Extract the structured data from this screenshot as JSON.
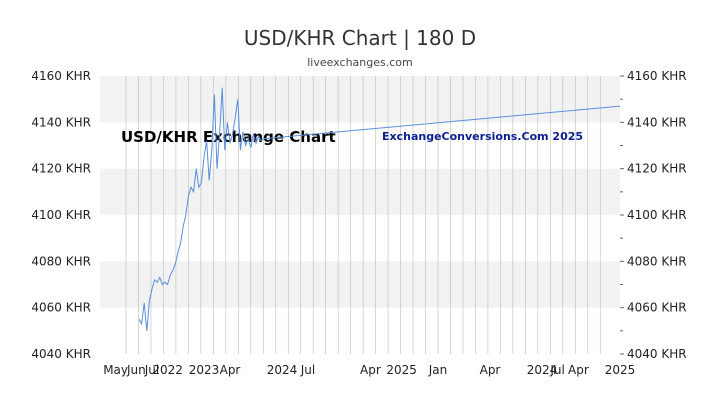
{
  "chart_data": {
    "type": "line",
    "title": "USD/KHR Chart | 180 D",
    "subtitle": "liveexchanges.com",
    "ylim": [
      4040,
      4160
    ],
    "y_ticks": [
      "4040 KHR",
      "4060 KHR",
      "4080 KHR",
      "4100 KHR",
      "4120 KHR",
      "4140 KHR",
      "4160 KHR"
    ],
    "y_tick_values": [
      4040,
      4060,
      4080,
      4100,
      4120,
      4140,
      4160
    ],
    "xlim": [
      0,
      100
    ],
    "x_tick_labels": [
      "May",
      "Jun",
      "Jul",
      "2022",
      "2023",
      "Apr",
      "2024",
      "Jul",
      "Apr",
      "2025",
      "Jan",
      "Apr",
      "2024",
      "Jul",
      "Apr",
      "2025"
    ],
    "x_tick_positions": [
      3,
      7,
      10,
      13,
      20,
      25,
      35,
      40,
      52,
      58,
      65,
      75,
      85,
      88,
      92,
      100
    ],
    "gridlines": true,
    "watermark_left": "USD/KHR Exchange Chart",
    "watermark_right": "ExchangeConversions.Com 2025",
    "line_color": "#5b8fdc",
    "series": [
      {
        "values_x": [
          7.5,
          8,
          8.5,
          9,
          9.5,
          10,
          10.5,
          11,
          11.5,
          12,
          12.5,
          13,
          13.5,
          14,
          14.5,
          15,
          15.5,
          16,
          16.5,
          17,
          17.5,
          18,
          18.5,
          19,
          19.5,
          20,
          20.5,
          21,
          21.5,
          22,
          22.5,
          23,
          23.5,
          24,
          24.5,
          25,
          25.5,
          26,
          26.5,
          27,
          27.5,
          28,
          28.5,
          29,
          29.5,
          30,
          30.5,
          31,
          31.5,
          32,
          100
        ],
        "values_y": [
          4055,
          4053,
          4062,
          4050,
          4063,
          4068,
          4072,
          4071,
          4073,
          4070,
          4071,
          4070,
          4074,
          4076,
          4079,
          4084,
          4088,
          4095,
          4100,
          4108,
          4112,
          4110,
          4120,
          4112,
          4114,
          4125,
          4132,
          4115,
          4128,
          4152,
          4120,
          4135,
          4155,
          4128,
          4140,
          4131,
          4135,
          4142,
          4150,
          4128,
          4136,
          4130,
          4133,
          4129,
          4135,
          4131,
          4134,
          4132,
          4133,
          4133,
          4147
        ]
      }
    ]
  }
}
